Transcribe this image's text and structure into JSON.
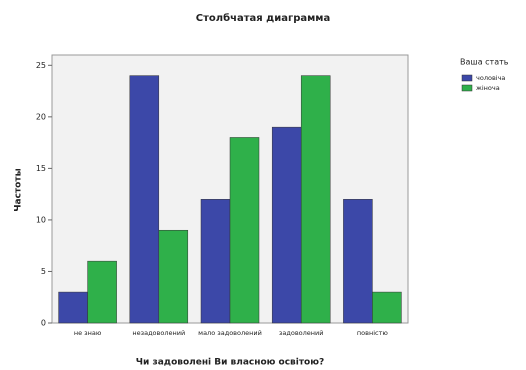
{
  "chart_data": {
    "type": "bar",
    "title": "Столбчатая диаграмма",
    "x_label": "Чи задоволені Ви власною освітою?",
    "y_label": "Частоты",
    "categories": [
      "не знаю",
      "незадоволений",
      "мало задоволений",
      "задоволений",
      "повністю"
    ],
    "legend_title": "Ваша стать",
    "series": [
      {
        "name": "чоловіча",
        "color": "#3c48a8",
        "values": [
          3,
          24,
          12,
          19,
          12
        ]
      },
      {
        "name": "жіноча",
        "color": "#2fb04a",
        "values": [
          6,
          9,
          18,
          24,
          3
        ]
      }
    ],
    "ylim": [
      0,
      26
    ],
    "yticks": [
      0,
      5,
      10,
      15,
      20,
      25
    ],
    "legend": "right"
  }
}
